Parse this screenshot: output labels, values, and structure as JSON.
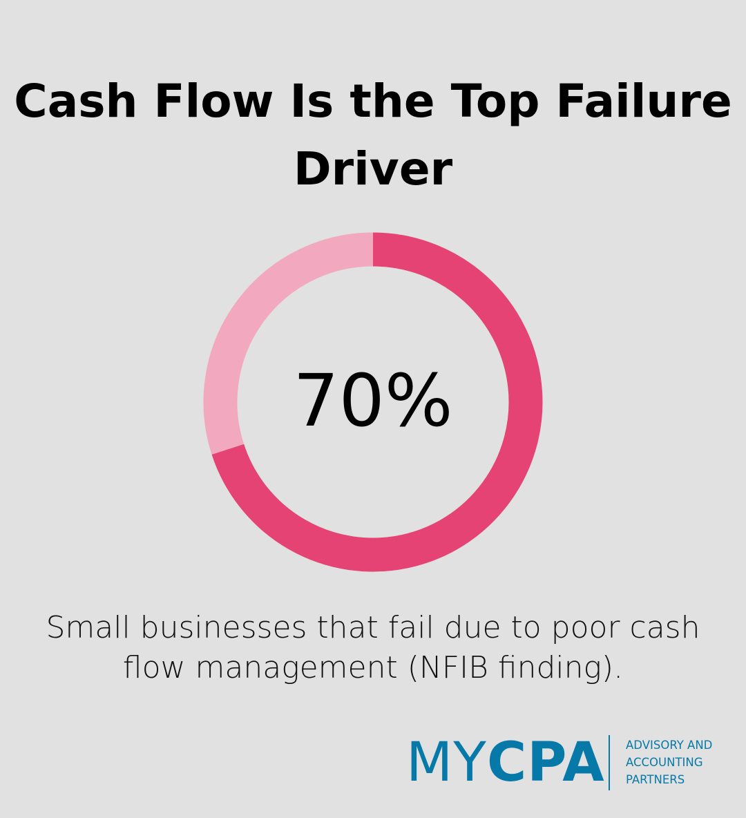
{
  "title": "Cash Flow Is the Top Failure Driver",
  "chart_data": {
    "type": "pie",
    "variant": "donut",
    "values": [
      70,
      30
    ],
    "colors": [
      "#e54373",
      "#f2a9bf"
    ],
    "center_label": "70%",
    "caption": "Small businesses that fail due to poor cash flow management (NFIB finding)."
  },
  "logo": {
    "name_light": "MY",
    "name_bold": "CPA",
    "tagline": [
      "ADVISORY AND",
      "ACCOUNTING",
      "PARTNERS"
    ],
    "color": "#0779a8"
  }
}
